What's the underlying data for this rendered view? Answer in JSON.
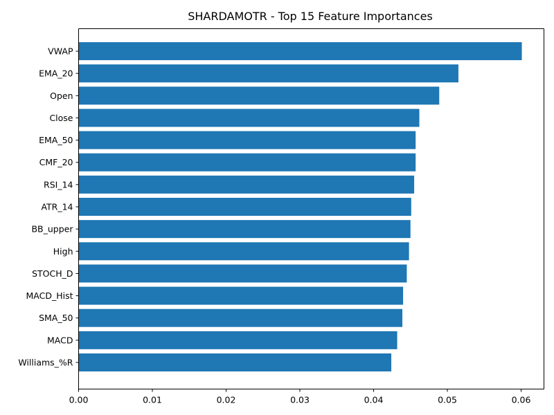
{
  "chart_data": {
    "type": "bar",
    "orientation": "horizontal",
    "title": "SHARDAMOTR - Top 15 Feature Importances",
    "xlabel": "",
    "ylabel": "",
    "categories": [
      "VWAP",
      "EMA_20",
      "Open",
      "Close",
      "EMA_50",
      "CMF_20",
      "RSI_14",
      "ATR_14",
      "BB_upper",
      "High",
      "STOCH_D",
      "MACD_Hist",
      "SMA_50",
      "MACD",
      "Williams_%R"
    ],
    "values": [
      0.0601,
      0.0515,
      0.0489,
      0.0462,
      0.0457,
      0.0457,
      0.0455,
      0.0451,
      0.045,
      0.0448,
      0.0445,
      0.044,
      0.0439,
      0.0432,
      0.0424
    ],
    "xlim": [
      0,
      0.0631
    ],
    "xticks": [
      "0.00",
      "0.01",
      "0.02",
      "0.03",
      "0.04",
      "0.05",
      "0.06"
    ],
    "grid": false,
    "bar_color": "#1f77b4"
  }
}
